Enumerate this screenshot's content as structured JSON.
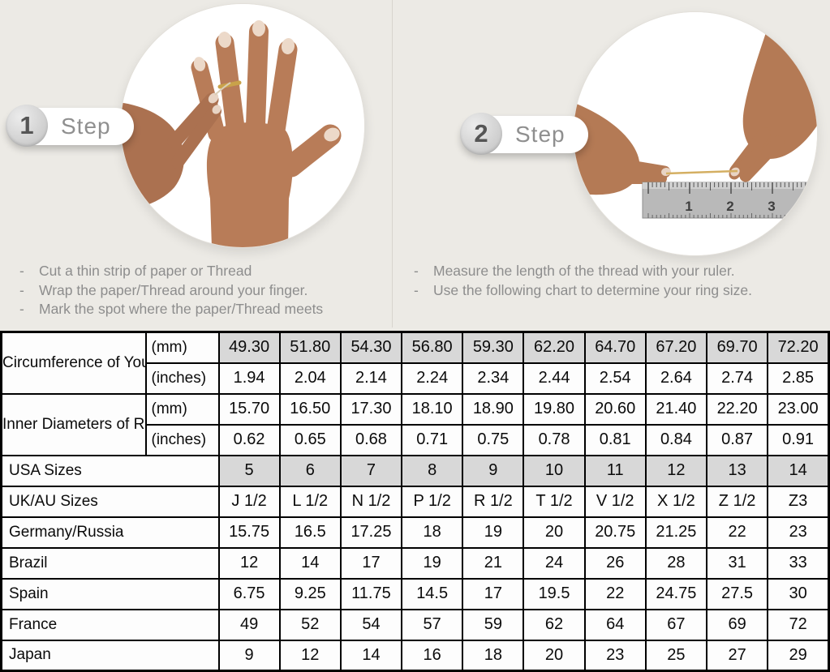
{
  "colors": {
    "page_background": "#eceae5",
    "shaded_cell": "#d8d8d8",
    "table_border": "#000000",
    "muted_text": "#8d8d8d",
    "gold_ring": "#c9a24a"
  },
  "steps": [
    {
      "number": "1",
      "label": "Step",
      "instructions": [
        "Cut a thin strip of paper or Thread",
        "Wrap the paper/Thread around your finger.",
        "Mark the spot where the paper/Thread meets"
      ]
    },
    {
      "number": "2",
      "label": "Step",
      "instructions": [
        "Measure the length of the thread with your ruler.",
        "Use the following chart to determine your ring size."
      ],
      "ruler_numbers": [
        "1",
        "2",
        "3"
      ]
    }
  ],
  "table": {
    "row_groups": [
      {
        "label": "Circumference of Your Finger",
        "rows": [
          {
            "unit": "(mm)",
            "shaded": true,
            "values": [
              "49.30",
              "51.80",
              "54.30",
              "56.80",
              "59.30",
              "62.20",
              "64.70",
              "67.20",
              "69.70",
              "72.20"
            ]
          },
          {
            "unit": "(inches)",
            "shaded": false,
            "values": [
              "1.94",
              "2.04",
              "2.14",
              "2.24",
              "2.34",
              "2.44",
              "2.54",
              "2.64",
              "2.74",
              "2.85"
            ]
          }
        ]
      },
      {
        "label": "Inner Diameters of Rings",
        "rows": [
          {
            "unit": "(mm)",
            "shaded": false,
            "values": [
              "15.70",
              "16.50",
              "17.30",
              "18.10",
              "18.90",
              "19.80",
              "20.60",
              "21.40",
              "22.20",
              "23.00"
            ]
          },
          {
            "unit": "(inches)",
            "shaded": false,
            "values": [
              "0.62",
              "0.65",
              "0.68",
              "0.71",
              "0.75",
              "0.78",
              "0.81",
              "0.84",
              "0.87",
              "0.91"
            ]
          }
        ]
      }
    ],
    "size_rows": [
      {
        "label": "USA Sizes",
        "shaded": true,
        "values": [
          "5",
          "6",
          "7",
          "8",
          "9",
          "10",
          "11",
          "12",
          "13",
          "14"
        ]
      },
      {
        "label": "UK/AU Sizes",
        "shaded": false,
        "values": [
          "J 1/2",
          "L 1/2",
          "N 1/2",
          "P 1/2",
          "R 1/2",
          "T 1/2",
          "V 1/2",
          "X 1/2",
          "Z 1/2",
          "Z3"
        ]
      },
      {
        "label": "Germany/Russia",
        "shaded": false,
        "values": [
          "15.75",
          "16.5",
          "17.25",
          "18",
          "19",
          "20",
          "20.75",
          "21.25",
          "22",
          "23"
        ]
      },
      {
        "label": "Brazil",
        "shaded": false,
        "values": [
          "12",
          "14",
          "17",
          "19",
          "21",
          "24",
          "26",
          "28",
          "31",
          "33"
        ]
      },
      {
        "label": "Spain",
        "shaded": false,
        "values": [
          "6.75",
          "9.25",
          "11.75",
          "14.5",
          "17",
          "19.5",
          "22",
          "24.75",
          "27.5",
          "30"
        ]
      },
      {
        "label": "France",
        "shaded": false,
        "values": [
          "49",
          "52",
          "54",
          "57",
          "59",
          "62",
          "64",
          "67",
          "69",
          "72"
        ]
      },
      {
        "label": "Japan",
        "shaded": false,
        "values": [
          "9",
          "12",
          "14",
          "16",
          "18",
          "20",
          "23",
          "25",
          "27",
          "29"
        ]
      }
    ]
  }
}
